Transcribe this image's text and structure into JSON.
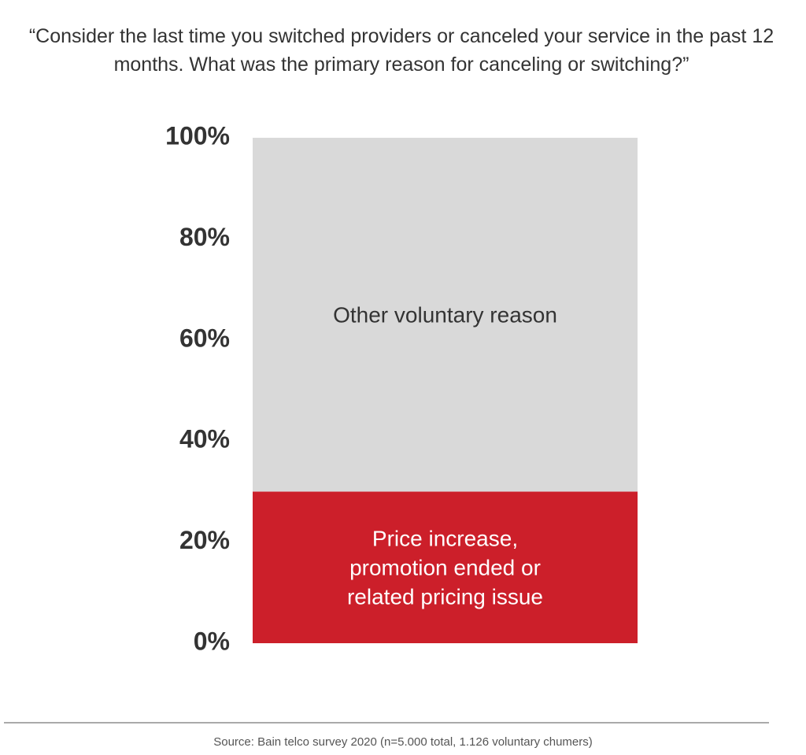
{
  "chart_data": {
    "type": "stacked_bar",
    "title": "“Consider the last time you switched providers or canceled your service in the past 12 months. What was the primary reason for canceling or switching?”",
    "categories": [
      null
    ],
    "series": [
      {
        "name": "Price increase, promotion ended or related pricing issue",
        "color": "#cc1f2a",
        "values": [
          30
        ]
      },
      {
        "name": "Other voluntary reason",
        "color": "#d9d9d9",
        "values": [
          70
        ]
      }
    ],
    "ylim": [
      0,
      100
    ],
    "yticks": [
      {
        "value": 0,
        "label": "0%"
      },
      {
        "value": 20,
        "label": "20%"
      },
      {
        "value": 40,
        "label": "40%"
      },
      {
        "value": 60,
        "label": "60%"
      },
      {
        "value": 80,
        "label": "80%"
      },
      {
        "value": 100,
        "label": "100%"
      }
    ],
    "grid": false,
    "source": "Source: Bain telco survey 2020 (n=5.000 total, 1.126 voluntary chumers)"
  }
}
